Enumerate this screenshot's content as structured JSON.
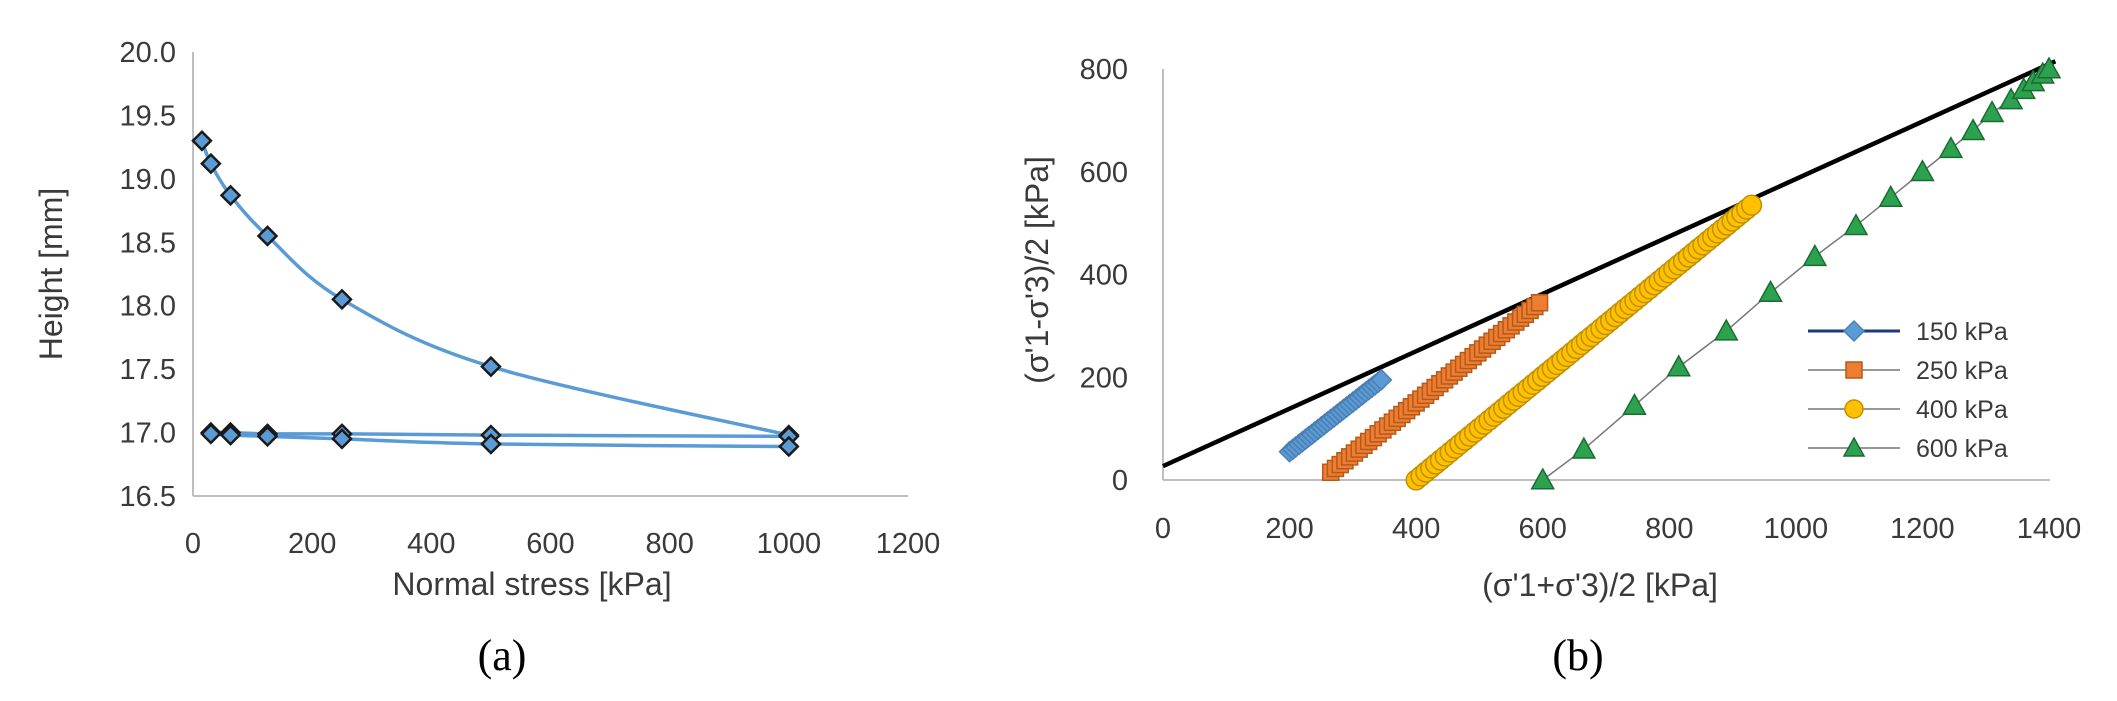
{
  "chart_data": [
    {
      "type": "scatter",
      "panel_label": "(a)",
      "xlabel": "Normal stress [kPa]",
      "ylabel": "Height [mm]",
      "xlim": [
        0,
        1200
      ],
      "ylim": [
        16.5,
        20.0
      ],
      "xticks": [
        "0",
        "200",
        "400",
        "600",
        "800",
        "1000",
        "1200"
      ],
      "yticks": [
        "16.5",
        "17.0",
        "17.5",
        "18.0",
        "18.5",
        "19.0",
        "19.5",
        "20.0"
      ],
      "grid": false,
      "legend": "none",
      "series": [
        {
          "color": "#5b9bd5",
          "marker": "diamond",
          "loading": [
            {
              "x": 15,
              "y": 19.3
            },
            {
              "x": 30,
              "y": 19.12
            },
            {
              "x": 63,
              "y": 18.87
            },
            {
              "x": 125,
              "y": 18.55
            },
            {
              "x": 250,
              "y": 18.05
            },
            {
              "x": 500,
              "y": 17.52
            },
            {
              "x": 1000,
              "y": 16.98
            }
          ],
          "unloading": [
            {
              "x": 1000,
              "y": 16.97
            },
            {
              "x": 500,
              "y": 16.98
            },
            {
              "x": 250,
              "y": 16.99
            },
            {
              "x": 125,
              "y": 16.99
            },
            {
              "x": 63,
              "y": 17.0
            },
            {
              "x": 30,
              "y": 17.0
            }
          ],
          "reloading": [
            {
              "x": 30,
              "y": 16.99
            },
            {
              "x": 63,
              "y": 16.98
            },
            {
              "x": 125,
              "y": 16.97
            },
            {
              "x": 250,
              "y": 16.95
            },
            {
              "x": 500,
              "y": 16.91
            },
            {
              "x": 1000,
              "y": 16.89
            }
          ]
        }
      ]
    },
    {
      "type": "scatter",
      "panel_label": "(b)",
      "xlabel": "(σ'1+σ'3)/2  [kPa]",
      "ylabel": "(σ'1-σ'3)/2  [kPa]",
      "xlim": [
        0,
        1400
      ],
      "ylim": [
        0,
        800
      ],
      "xticks": [
        "0",
        "200",
        "400",
        "600",
        "800",
        "1000",
        "1200",
        "1400"
      ],
      "yticks": [
        "0",
        "200",
        "400",
        "600",
        "800"
      ],
      "grid": false,
      "legend": "right",
      "envelope": {
        "color": "#000000",
        "x": [
          0,
          1410
        ],
        "y": [
          27,
          815
        ]
      },
      "series": [
        {
          "name": "150 kPa",
          "marker": "diamond",
          "color": "#5b9bd5",
          "edge": "#4a7fb3",
          "line": "#1f3a7a",
          "x_start": 200,
          "y_start": 55,
          "x_end": 345,
          "y_end": 195,
          "count": 30
        },
        {
          "name": "250 kPa",
          "marker": "square",
          "color": "#ed7d31",
          "edge": "#b55a1a",
          "line": "#777777",
          "x_start": 265,
          "y_start": 15,
          "x_end": 595,
          "y_end": 345,
          "count": 45
        },
        {
          "name": "400 kPa",
          "marker": "circle",
          "color": "#ffc000",
          "edge": "#bf9000",
          "line": "#777777",
          "x_start": 400,
          "y_start": 0,
          "x_end": 930,
          "y_end": 535,
          "count": 70
        },
        {
          "name": "600 kPa",
          "marker": "triangle",
          "color": "#2ca24f",
          "edge": "#1a6b34",
          "line": "#777777",
          "points": [
            {
              "x": 600,
              "y": 0
            },
            {
              "x": 665,
              "y": 60
            },
            {
              "x": 745,
              "y": 145
            },
            {
              "x": 815,
              "y": 220
            },
            {
              "x": 890,
              "y": 290
            },
            {
              "x": 960,
              "y": 365
            },
            {
              "x": 1030,
              "y": 435
            },
            {
              "x": 1095,
              "y": 495
            },
            {
              "x": 1150,
              "y": 550
            },
            {
              "x": 1200,
              "y": 600
            },
            {
              "x": 1245,
              "y": 645
            },
            {
              "x": 1280,
              "y": 680
            },
            {
              "x": 1310,
              "y": 715
            },
            {
              "x": 1340,
              "y": 740
            },
            {
              "x": 1360,
              "y": 760
            },
            {
              "x": 1375,
              "y": 775
            },
            {
              "x": 1390,
              "y": 790
            },
            {
              "x": 1400,
              "y": 800
            }
          ]
        }
      ]
    }
  ]
}
